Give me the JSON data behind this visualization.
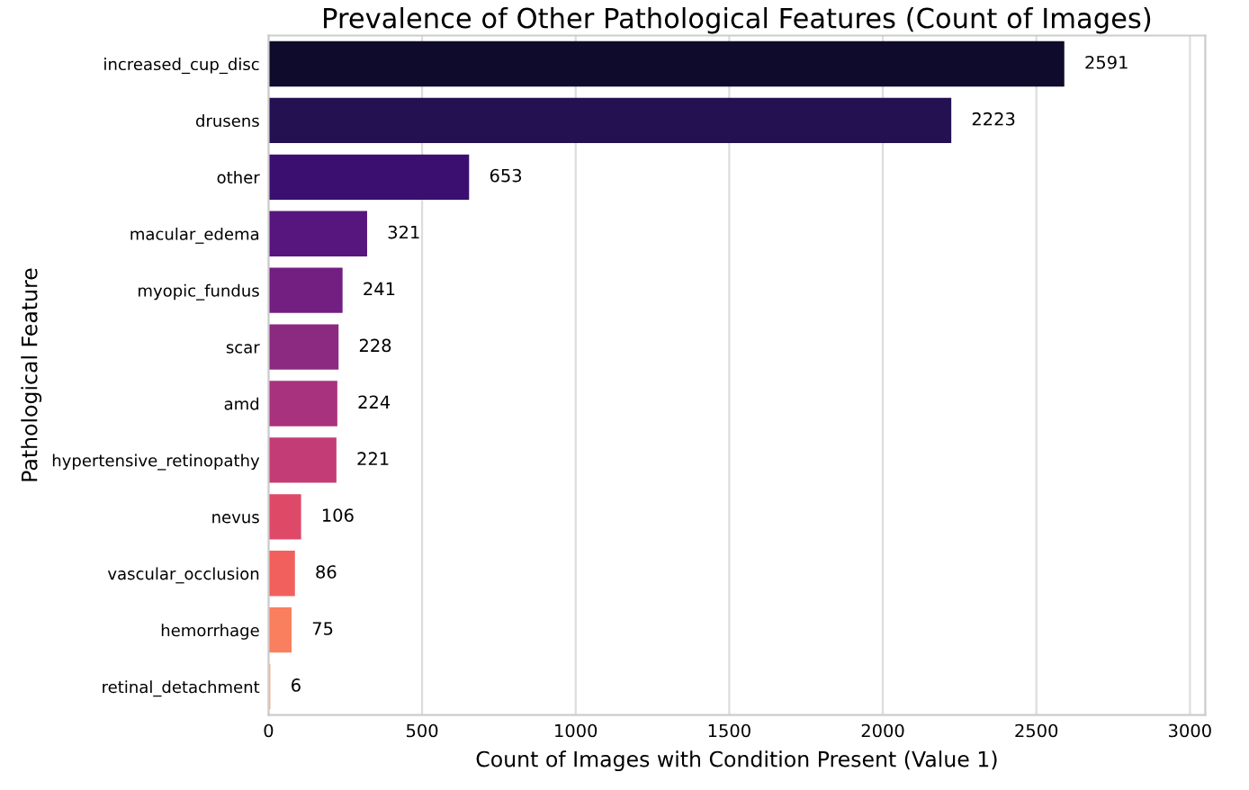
{
  "chart_data": {
    "type": "bar",
    "orientation": "horizontal",
    "title": "Prevalence of Other Pathological Features (Count of Images)",
    "xlabel": "Count of Images with Condition Present (Value 1)",
    "ylabel": "Pathological Feature",
    "categories": [
      "increased_cup_disc",
      "drusens",
      "other",
      "macular_edema",
      "myopic_fundus",
      "scar",
      "amd",
      "hypertensive_retinopathy",
      "nevus",
      "vascular_occlusion",
      "hemorrhage",
      "retinal_detachment"
    ],
    "values": [
      2591,
      2223,
      653,
      321,
      241,
      228,
      224,
      221,
      106,
      86,
      75,
      6
    ],
    "colors": [
      "#0f0b2c",
      "#231151",
      "#3b0f70",
      "#57157e",
      "#721f81",
      "#8c2981",
      "#a8327d",
      "#c43c75",
      "#de4968",
      "#f1605d",
      "#fa7f5e",
      "#feb078"
    ],
    "xlim": [
      0,
      3050
    ],
    "xticks": [
      0,
      500,
      1000,
      1500,
      2000,
      2500,
      3000
    ],
    "grid": "x",
    "data_labels": true
  }
}
